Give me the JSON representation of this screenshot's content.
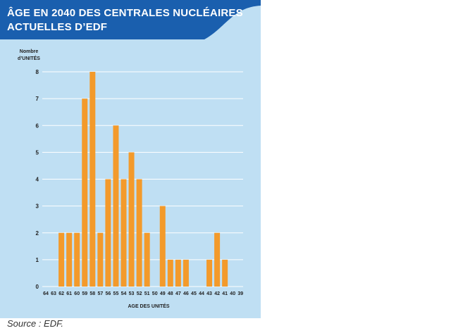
{
  "header": {
    "title_line1": "ÂGE EN 2040 DES CENTRALES NUCLÉAIRES",
    "title_line2": "ACTUELLES D’EDF",
    "bg_color": "#1a5fae"
  },
  "source": "Source : EDF.",
  "colors": {
    "panel": "#bfdff3",
    "bar": "#f39a2b",
    "grid": "#ffffff"
  },
  "chart_data": {
    "type": "bar",
    "title": "ÂGE EN 2040 DES CENTRALES NUCLÉAIRES ACTUELLES D’EDF",
    "ylabel_line1": "Nombre",
    "ylabel_line2": "d’UNITÉS",
    "xlabel": "AGE DES UNITÉS",
    "ylim": [
      0,
      8
    ],
    "yticks": [
      0,
      1,
      2,
      3,
      4,
      5,
      6,
      7,
      8
    ],
    "categories": [
      "64",
      "63",
      "62",
      "61",
      "60",
      "59",
      "58",
      "57",
      "56",
      "55",
      "54",
      "53",
      "52",
      "51",
      "50",
      "49",
      "48",
      "47",
      "46",
      "45",
      "44",
      "43",
      "42",
      "41",
      "40",
      "39"
    ],
    "values": [
      0,
      0,
      2,
      2,
      2,
      7,
      8,
      2,
      4,
      6,
      4,
      5,
      4,
      2,
      0,
      3,
      1,
      1,
      1,
      0,
      0,
      1,
      2,
      1,
      0,
      0
    ],
    "grid": true
  }
}
